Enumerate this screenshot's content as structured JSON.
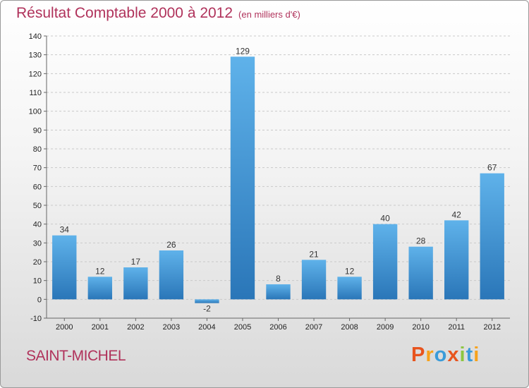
{
  "title": "Résultat Comptable 2000 à 2012",
  "subtitle": "(en milliers d'€)",
  "commune": "SAINT-MICHEL",
  "brand": {
    "letters": [
      "P",
      "r",
      "o",
      "x",
      "i",
      "t",
      "i"
    ],
    "colors": [
      "#e8541e",
      "#f7a21b",
      "#3a9bd9",
      "#e8541e",
      "#8cc63f",
      "#3a9bd9",
      "#f7a21b"
    ]
  },
  "chart_data": {
    "type": "bar",
    "title": "Résultat Comptable 2000 à 2012",
    "ylabel": "en milliers d'€",
    "categories": [
      "2000",
      "2001",
      "2002",
      "2003",
      "2004",
      "2005",
      "2006",
      "2007",
      "2008",
      "2009",
      "2010",
      "2011",
      "2012"
    ],
    "values": [
      34,
      12,
      17,
      26,
      -2,
      129,
      8,
      21,
      12,
      40,
      28,
      42,
      67
    ],
    "ylim": [
      -10,
      140
    ],
    "yticks": [
      -10,
      0,
      10,
      20,
      30,
      40,
      50,
      60,
      70,
      80,
      90,
      100,
      110,
      120,
      130,
      140
    ],
    "bar_color": "#4a9fdf"
  }
}
